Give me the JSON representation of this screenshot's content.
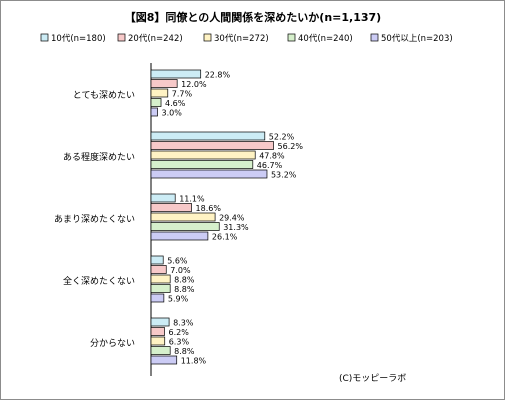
{
  "chart_data": {
    "type": "bar",
    "orientation": "horizontal",
    "title": "【図8】同僚との人間関係を深めたいか(n=1,137)",
    "credit": "(C)モッピーラボ",
    "legend_position": "top",
    "grid": false,
    "xlim": [
      0,
      60
    ],
    "unit": "%",
    "categories": [
      "とても深めたい",
      "ある程度深めたい",
      "あまり深めたくない",
      "全く深めたくない",
      "分からない"
    ],
    "series": [
      {
        "name": "10代(n=180)",
        "color": "#ccecf5",
        "values": [
          22.8,
          52.2,
          11.1,
          5.6,
          8.3
        ]
      },
      {
        "name": "20代(n=242)",
        "color": "#f7c9c9",
        "values": [
          12.0,
          56.2,
          18.6,
          7.0,
          6.2
        ]
      },
      {
        "name": "30代(n=272)",
        "color": "#fff3c4",
        "values": [
          7.7,
          47.8,
          29.4,
          8.8,
          6.3
        ]
      },
      {
        "name": "40代(n=240)",
        "color": "#d6f0cc",
        "values": [
          4.6,
          46.7,
          31.3,
          8.8,
          8.8
        ]
      },
      {
        "name": "50代以上(n=203)",
        "color": "#ccccf5",
        "values": [
          3.0,
          53.2,
          26.1,
          5.9,
          11.8
        ]
      }
    ]
  }
}
